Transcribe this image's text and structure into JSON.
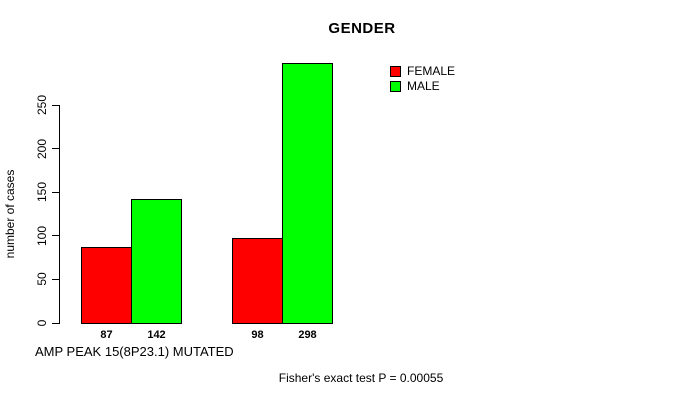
{
  "chart_data": {
    "type": "bar",
    "title": "GENDER",
    "ylabel": "number of cases",
    "xlabel": "AMP PEAK 15(8P23.1) MUTATED",
    "annotation": "Fisher's exact test P = 0.00055",
    "ylim": [
      0,
      250
    ],
    "yticks": [
      0,
      50,
      100,
      150,
      200,
      250
    ],
    "categories": [
      "AMP PEAK 15(8P23.1) MUTATED",
      ""
    ],
    "series": [
      {
        "name": "FEMALE",
        "color": "#FF0000",
        "values": [
          87,
          98
        ]
      },
      {
        "name": "MALE",
        "color": "#00FF00",
        "values": [
          142,
          298
        ]
      }
    ],
    "bar_value_labels": [
      "87",
      "142",
      "98",
      "298"
    ],
    "legend_position": "top-right",
    "grid": false,
    "background": "#FFFFFF",
    "axis_color": "#000000"
  }
}
